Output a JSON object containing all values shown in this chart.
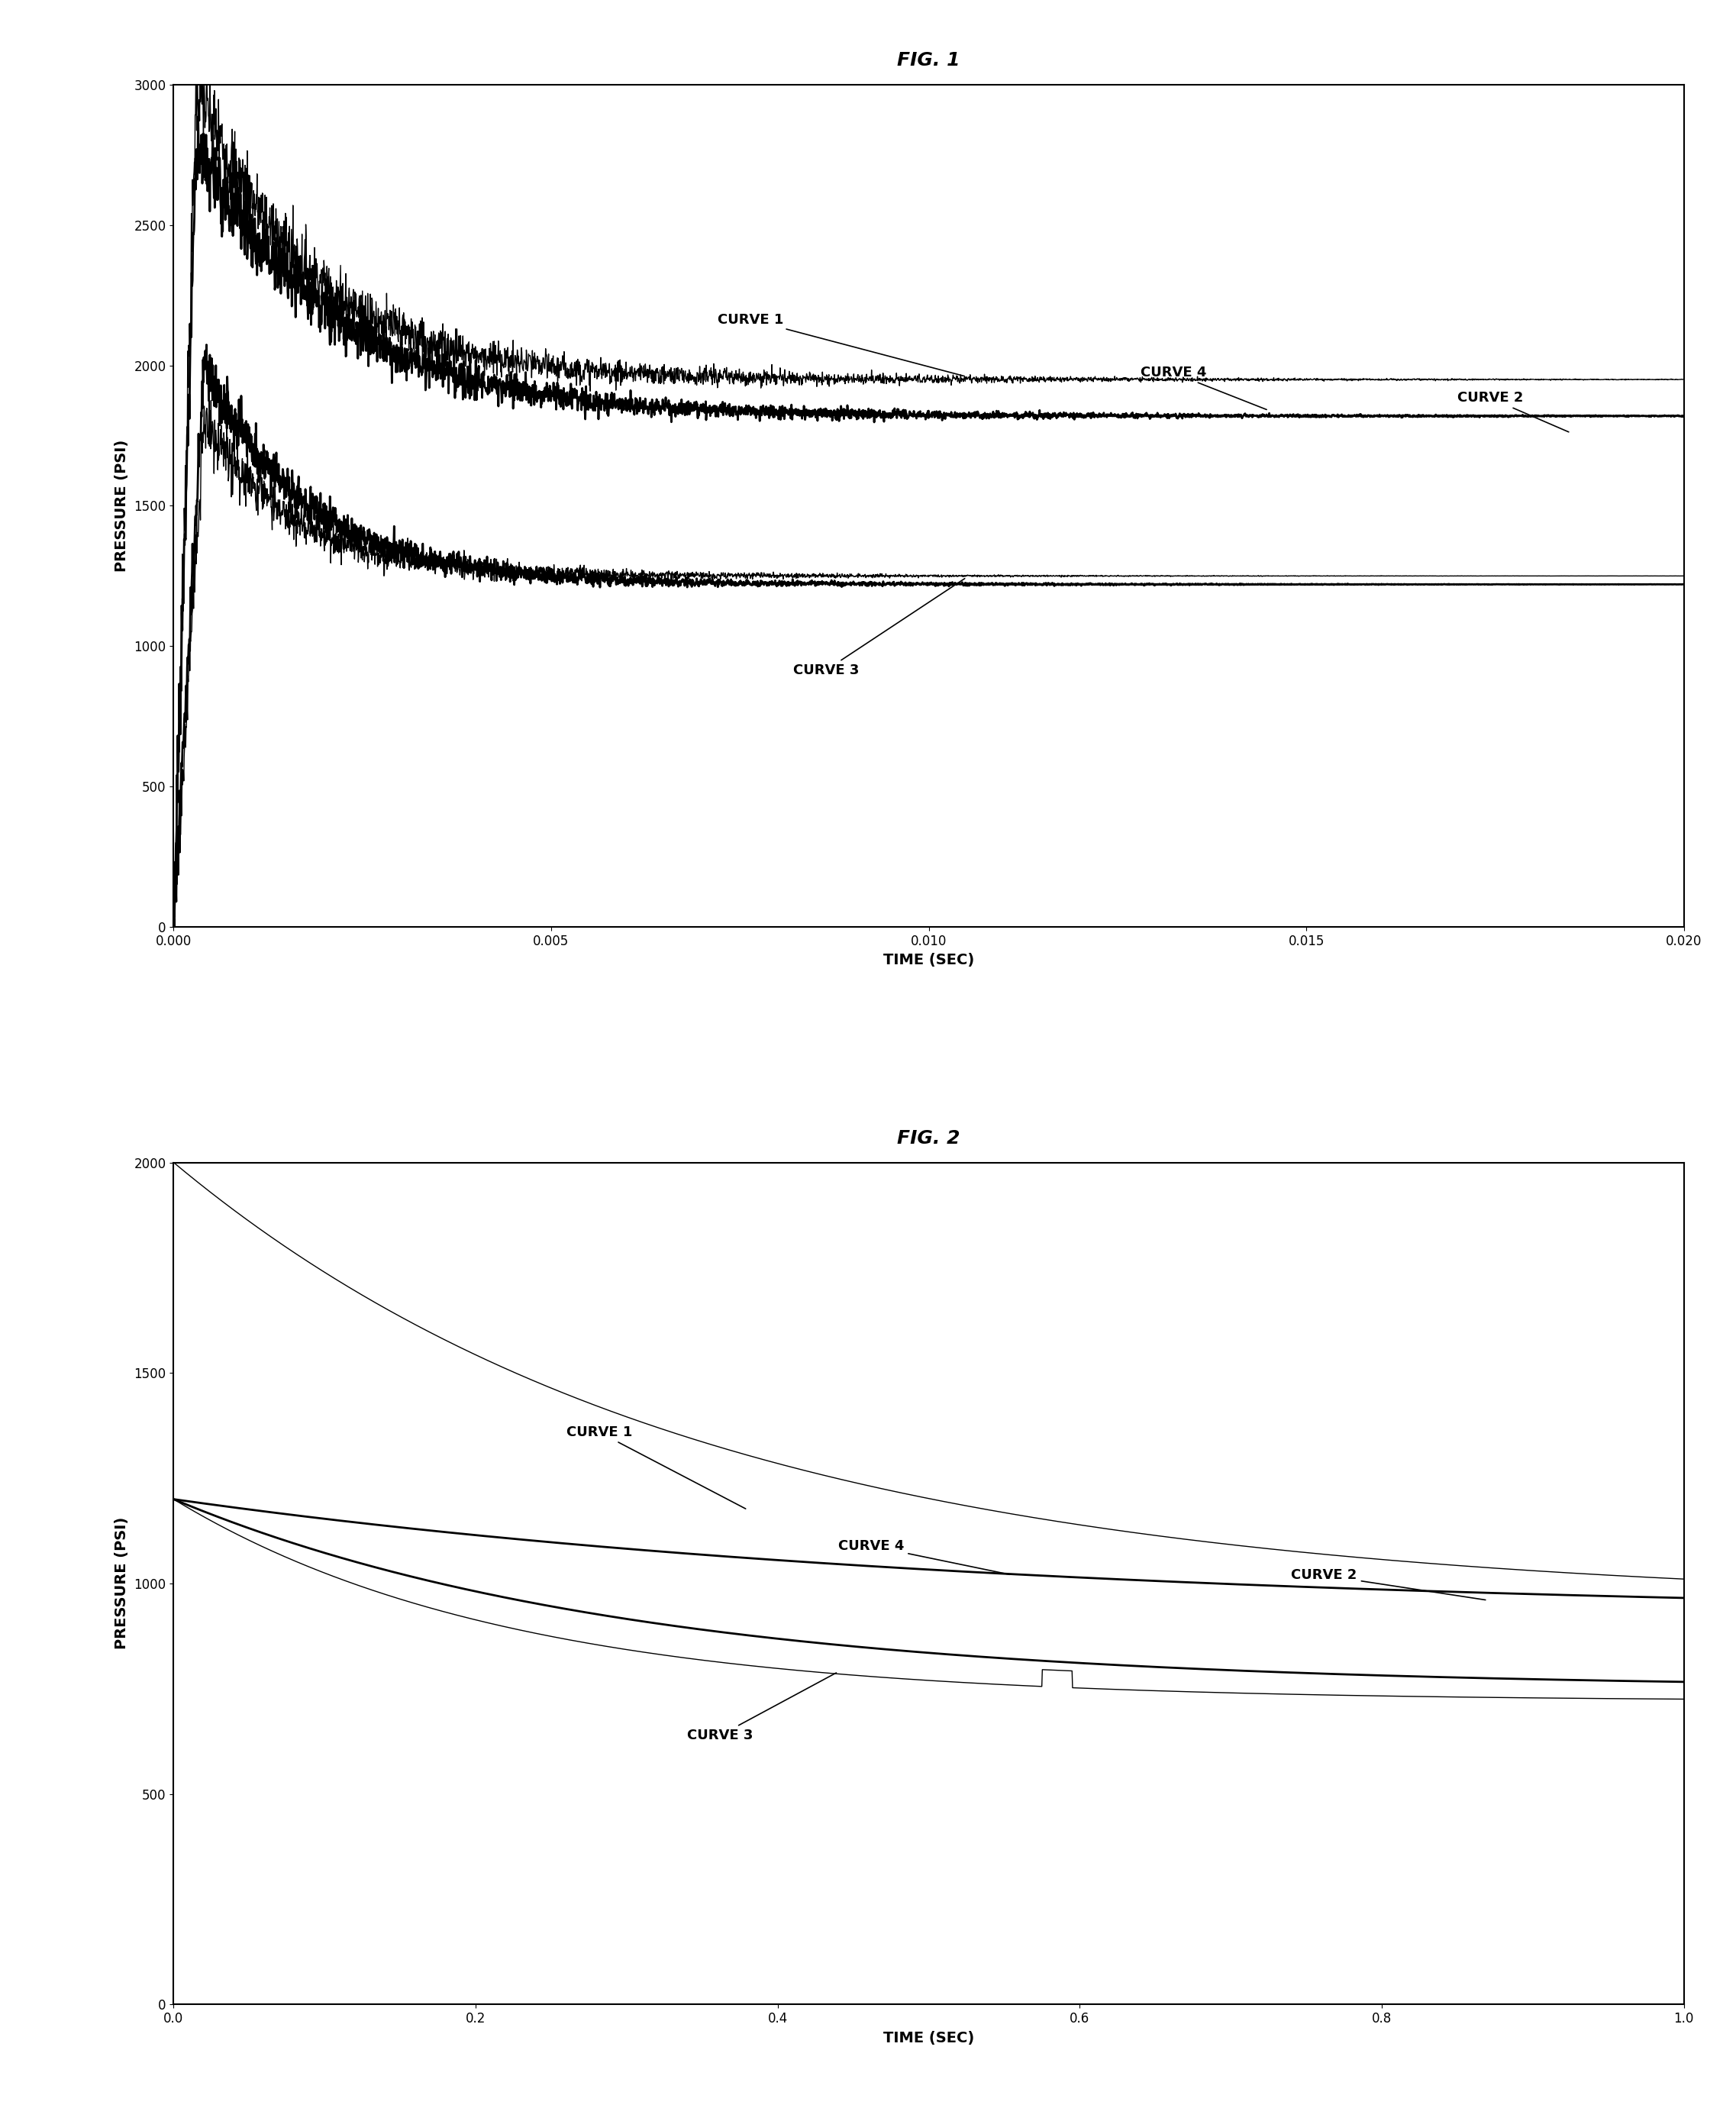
{
  "fig1": {
    "title": "FIG. 1",
    "xlabel": "TIME (SEC)",
    "ylabel": "PRESSURE (PSI)",
    "xlim": [
      0.0,
      0.02
    ],
    "ylim": [
      0,
      3000
    ],
    "xticks": [
      0.0,
      0.005,
      0.01,
      0.015,
      0.02
    ],
    "yticks": [
      0,
      500,
      1000,
      1500,
      2000,
      2500,
      3000
    ]
  },
  "fig2": {
    "title": "FIG. 2",
    "xlabel": "TIME (SEC)",
    "ylabel": "PRESSURE (PSI)",
    "xlim": [
      0.0,
      1.0
    ],
    "ylim": [
      0,
      2000
    ],
    "xticks": [
      0.0,
      0.2,
      0.4,
      0.6,
      0.8,
      1.0
    ],
    "yticks": [
      0,
      500,
      1000,
      1500,
      2000
    ]
  },
  "lw_thin": 1.0,
  "lw_thick": 2.0,
  "fontsize_title": 18,
  "fontsize_label": 14,
  "fontsize_tick": 12,
  "fontsize_annot": 13
}
